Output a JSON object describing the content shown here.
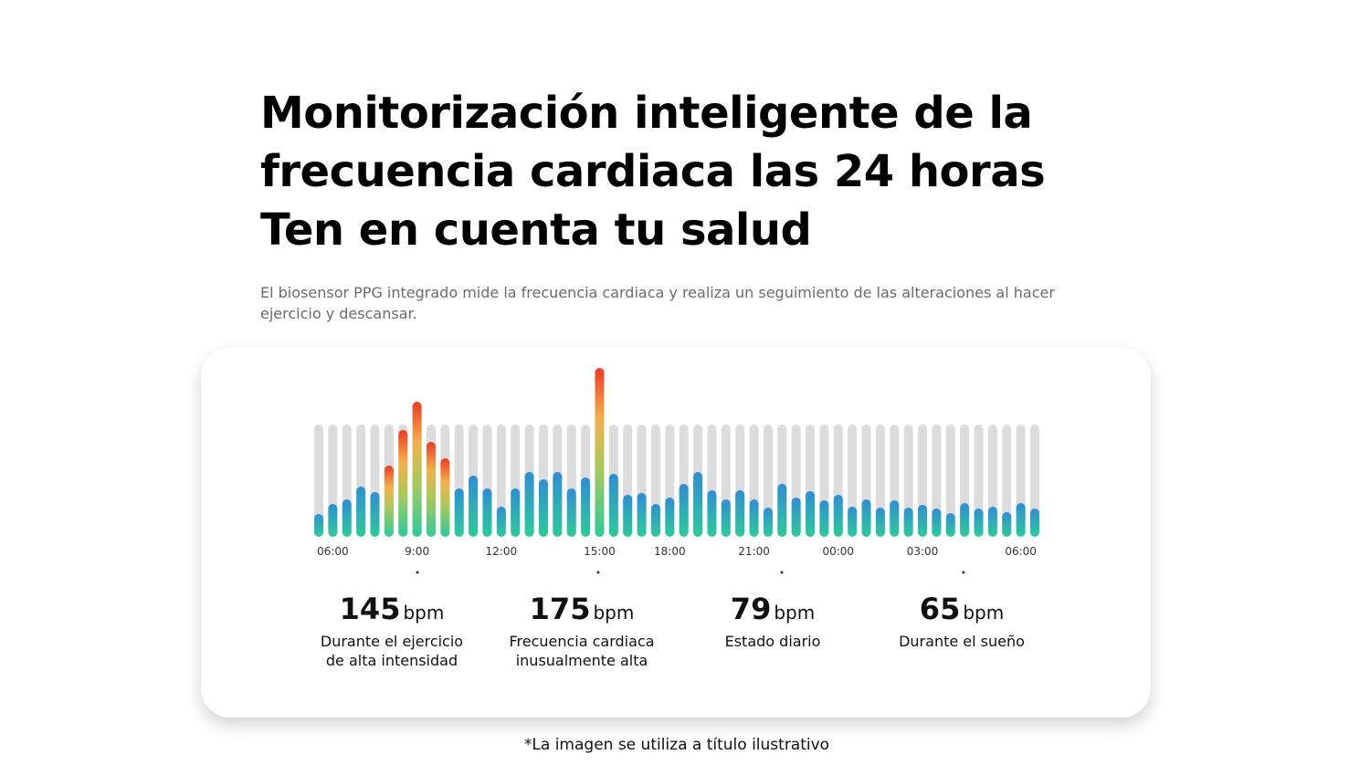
{
  "header": {
    "title_lines": [
      "Monitorización inteligente de la",
      "frecuencia cardiaca las 24 horas",
      "Ten en cuenta tu salud"
    ],
    "subtitle": "El biosensor PPG integrado mide la frecuencia cardiaca y realiza un seguimiento de las alteraciones al hacer ejercicio y descansar."
  },
  "chart_data": {
    "type": "bar",
    "categories": [
      null,
      "06:00",
      null,
      null,
      null,
      null,
      null,
      "9:00",
      null,
      null,
      null,
      null,
      null,
      "12:00",
      null,
      null,
      null,
      null,
      null,
      null,
      "15:00",
      null,
      null,
      null,
      null,
      "18:00",
      null,
      null,
      null,
      null,
      null,
      "21:00",
      null,
      null,
      null,
      null,
      null,
      "00:00",
      null,
      null,
      null,
      null,
      null,
      "03:00",
      null,
      null,
      null,
      null,
      null,
      null,
      "06:00",
      null
    ],
    "values": [
      25,
      36,
      41,
      55,
      49,
      78,
      117,
      148,
      104,
      86,
      53,
      67,
      53,
      33,
      53,
      71,
      63,
      71,
      53,
      65,
      185,
      69,
      46,
      48,
      36,
      43,
      58,
      71,
      51,
      41,
      51,
      41,
      32,
      58,
      43,
      50,
      40,
      46,
      33,
      41,
      32,
      40,
      32,
      35,
      31,
      26,
      37,
      31,
      33,
      27,
      37,
      31
    ]
  },
  "stats": [
    {
      "value": 145,
      "unit": "bpm",
      "label": "Durante el ejercicio de alta intensidad"
    },
    {
      "value": 175,
      "unit": "bpm",
      "label": "Frecuencia cardiaca inusualmente alta"
    },
    {
      "value": 79,
      "unit": "bpm",
      "label": "Estado diario"
    },
    {
      "value": 65,
      "unit": "bpm",
      "label": "Durante el sueño"
    }
  ],
  "footnote": "*La imagen se utiliza a título ilustrativo"
}
